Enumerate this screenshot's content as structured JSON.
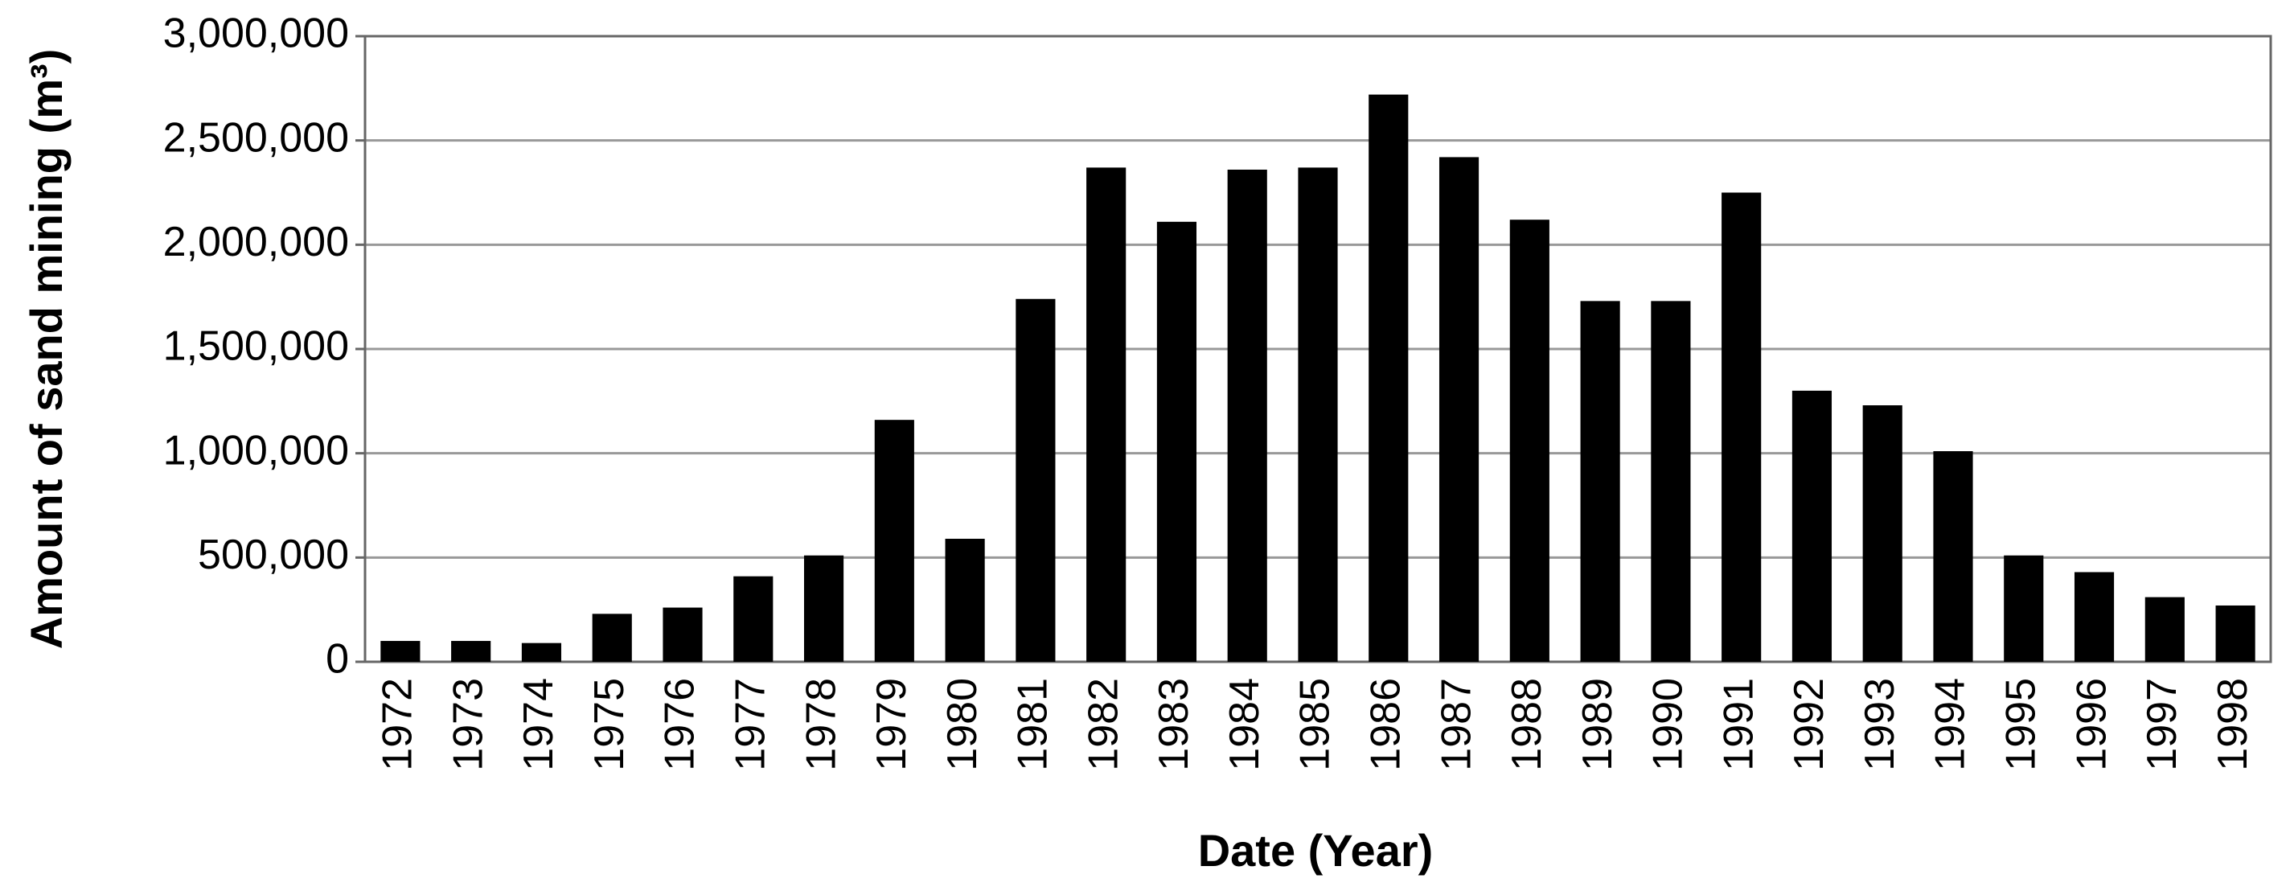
{
  "chart_data": {
    "type": "bar",
    "x_label": "Date (Year)",
    "y_label": "Amount of sand mining (m³)",
    "categories": [
      "1972",
      "1973",
      "1974",
      "1975",
      "1976",
      "1977",
      "1978",
      "1979",
      "1980",
      "1981",
      "1982",
      "1983",
      "1984",
      "1985",
      "1986",
      "1987",
      "1988",
      "1989",
      "1990",
      "1991",
      "1992",
      "1993",
      "1994",
      "1995",
      "1996",
      "1997",
      "1998"
    ],
    "values": [
      100000,
      100000,
      90000,
      230000,
      260000,
      410000,
      510000,
      1160000,
      590000,
      1740000,
      2370000,
      2110000,
      2360000,
      2370000,
      2720000,
      2420000,
      2120000,
      1730000,
      1730000,
      2250000,
      1300000,
      1230000,
      1010000,
      510000,
      430000,
      310000,
      270000
    ],
    "color": "#000000",
    "ylim": [
      0,
      3000000
    ],
    "yticks": [
      0,
      {
        "value": 500000,
        "label": "500,000"
      },
      {
        "value": 1000000,
        "label": "1,000,000"
      },
      {
        "value": 1500000,
        "label": "1,500,000"
      },
      {
        "value": 2000000,
        "label": "2,000,000"
      },
      {
        "value": 2500000,
        "label": "2,500,000"
      },
      {
        "value": 3000000,
        "label": "3,000,000"
      }
    ],
    "grid": true
  }
}
